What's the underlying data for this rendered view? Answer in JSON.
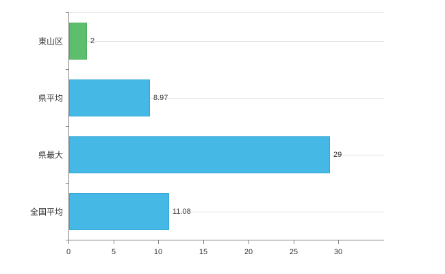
{
  "chart_data": {
    "type": "bar",
    "orientation": "horizontal",
    "title": "",
    "xlabel": "",
    "ylabel": "",
    "categories": [
      "東山区",
      "県平均",
      "県最大",
      "全国平均"
    ],
    "values": [
      2,
      8.97,
      29,
      11.08
    ],
    "value_labels": [
      "2",
      "8.97",
      "29",
      "11.08"
    ],
    "bar_colors": [
      "#5dbf6e",
      "#45b8e6",
      "#45b8e6",
      "#45b8e6"
    ],
    "bar_border_colors": [
      "#4cae5d",
      "#35a7d6",
      "#35a7d6",
      "#35a7d6"
    ],
    "xlim": [
      0,
      35
    ],
    "xticks": [
      0,
      5,
      10,
      15,
      20,
      25,
      30
    ],
    "xtick_labels": [
      "0",
      "5",
      "10",
      "15",
      "20",
      "25",
      "30"
    ],
    "grid": "horizontal-category-lines",
    "legend": "none",
    "grid_color": "#e4e4e4",
    "axis_color": "#7f7f7f",
    "text_color": "#333333",
    "background_color": "#ffffff"
  }
}
